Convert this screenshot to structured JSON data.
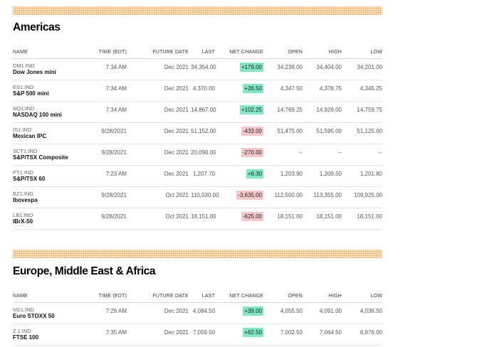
{
  "americas": {
    "title": "Americas",
    "headers": [
      "NAME",
      "TIME (EDT)",
      "FUTURE DATE",
      "LAST",
      "NET CHANGE",
      "OPEN",
      "HIGH",
      "LOW"
    ],
    "rows": [
      {
        "symbol": "DM1:IND",
        "name": "Dow Jones mini",
        "time": "7:34 AM",
        "future_date": "Dec 2021",
        "last": "34,354.00",
        "net_change": "+179.00",
        "direction": "up",
        "open": "34,239.00",
        "high": "34,404.00",
        "low": "34,201.00"
      },
      {
        "symbol": "ES1:IND",
        "name": "S&P 500 mini",
        "time": "7:34 AM",
        "future_date": "Dec 2021",
        "last": "4,370.00",
        "net_change": "+26.50",
        "direction": "up",
        "open": "4,347.50",
        "high": "4,378.75",
        "low": "4,345.25"
      },
      {
        "symbol": "NQ1:IND",
        "name": "NASDAQ 100 mini",
        "time": "7:34 AM",
        "future_date": "Dec 2021",
        "last": "14,867.00",
        "net_change": "+102.25",
        "direction": "up",
        "open": "14,769.25",
        "high": "14,926.00",
        "low": "14,759.75"
      },
      {
        "symbol": "IS1:IND",
        "name": "Mexican IPC",
        "time": "9/28/2021",
        "future_date": "Dec 2021",
        "last": "51,152.00",
        "net_change": "-433.00",
        "direction": "down",
        "open": "51,475.00",
        "high": "51,595.00",
        "low": "51,125.00"
      },
      {
        "symbol": "SCT1:IND",
        "name": "S&P/TSX Composite",
        "time": "9/28/2021",
        "future_date": "Dec 2021",
        "last": "20,090.00",
        "net_change": "-270.00",
        "direction": "down",
        "open": "--",
        "high": "--",
        "low": "--"
      },
      {
        "symbol": "PT1:IND",
        "name": "S&P/TSX 60",
        "time": "7:23 AM",
        "future_date": "Dec 2021",
        "last": "1,207.70",
        "net_change": "+6.30",
        "direction": "up",
        "open": "1,203.90",
        "high": "1,209.50",
        "low": "1,201.80"
      },
      {
        "symbol": "BZ1:IND",
        "name": "Ibovespa",
        "time": "9/28/2021",
        "future_date": "Oct 2021",
        "last": "110,030.00",
        "net_change": "-3,635.00",
        "direction": "down",
        "open": "112,500.00",
        "high": "113,355.00",
        "low": "109,925.00"
      },
      {
        "symbol": "LB1:IND",
        "name": "IBrX-50",
        "time": "9/28/2021",
        "future_date": "Oct 2021",
        "last": "18,151.00",
        "net_change": "-625.00",
        "direction": "down",
        "open": "18,151.00",
        "high": "18,151.00",
        "low": "18,151.00"
      }
    ]
  },
  "emea": {
    "title": "Europe, Middle East & Africa",
    "headers": [
      "NAME",
      "TIME (EDT)",
      "FUTURE DATE",
      "LAST",
      "NET CHANGE",
      "OPEN",
      "HIGH",
      "LOW"
    ],
    "rows": [
      {
        "symbol": "VG1:IND",
        "name": "Euro STOXX 50",
        "time": "7:29 AM",
        "future_date": "Dec 2021",
        "last": "4,084.50",
        "net_change": "+39.00",
        "direction": "up",
        "open": "4,055.50",
        "high": "4,091.00",
        "low": "4,036.50"
      },
      {
        "symbol": "Z 1:IND",
        "name": "FTSE 100",
        "time": "7:35 AM",
        "future_date": "Dec 2021",
        "last": "7,059.50",
        "net_change": "+62.50",
        "direction": "up",
        "open": "7,002.50",
        "high": "7,064.50",
        "low": "6,976.00"
      }
    ]
  },
  "colors": {
    "up": "#7fe8c6",
    "down": "#f7c7c9",
    "band": "#fbe3c4"
  }
}
